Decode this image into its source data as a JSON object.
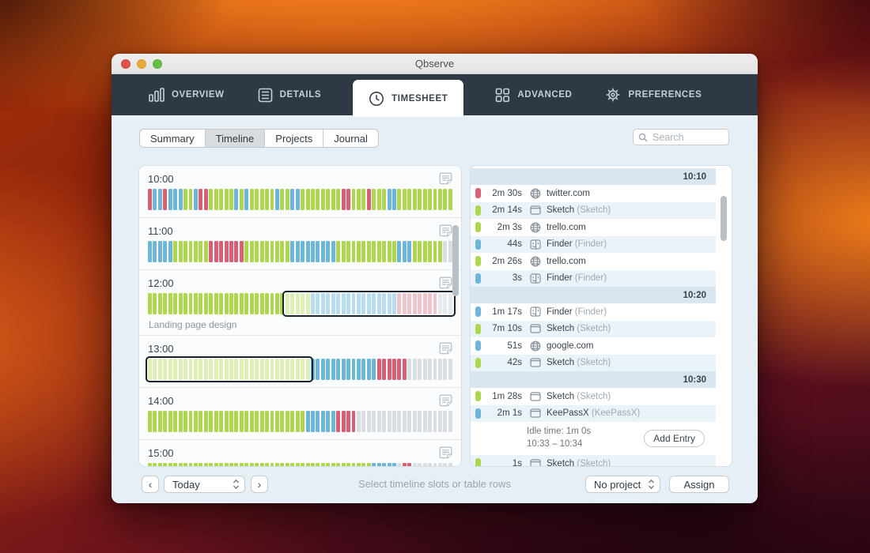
{
  "window": {
    "title": "Qbserve"
  },
  "tabs": {
    "active_index": 2,
    "items": [
      {
        "label": "OVERVIEW"
      },
      {
        "label": "DETAILS"
      },
      {
        "label": "TIMESHEET"
      },
      {
        "label": "ADVANCED"
      },
      {
        "label": "PREFERENCES"
      }
    ]
  },
  "subtabs": {
    "active_index": 1,
    "items": [
      {
        "label": "Summary"
      },
      {
        "label": "Timeline"
      },
      {
        "label": "Projects"
      },
      {
        "label": "Journal"
      }
    ]
  },
  "search": {
    "placeholder": "Search"
  },
  "timeline": {
    "colors": {
      "G": "#aed74f",
      "B": "#6db6d9",
      "R": "#d95f74",
      "I": "#d9dee3",
      "g": "#ddefb6",
      "b": "#b9ddee",
      "r": "#eec5cd",
      "i": "#e6eaed"
    },
    "hours": [
      {
        "time": "10:00",
        "pattern": "RBBRBBBGGBRRGGGGGBGBGGGGGBGGBBGGGGGGGGRRGGGRGGGBBGGGGGGGGGGG"
      },
      {
        "time": "11:00",
        "pattern": "BBBBBGGGGGGGRRRRRRRGGGGGGGGGBBBBBBBBBGGGGGGGGGGGGBBBGGGGGGII"
      },
      {
        "time": "12:00",
        "pattern": "GGGGGGGGGGGGGGGGGGGGGGGGGGGgggggbbbbbbbbbbbbbbbbbrrrrrrrriii",
        "label": "Landing page design",
        "selection": {
          "start": 27,
          "end": 60
        }
      },
      {
        "time": "13:00",
        "pattern": "ggggggggggggggggggggggggggggggggBBBBBBBBBBBBBRRRRRRIIIIIIIII",
        "selection": {
          "start": 0,
          "end": 32
        }
      },
      {
        "time": "14:00",
        "pattern": "GGGGGGGGGGGGGGGGGGGGGGGGGGGGGGGBBBBBBRRRRIIIIIIIIIIIIIIIIIII"
      },
      {
        "time": "15:00",
        "pattern": "GGGGGGGGGGGGGGGGGGGGGGGGGGGGGGGGGGGGGGGGGGGGBBBBBIRRIIIIIIII"
      }
    ]
  },
  "activity": {
    "pill_colors": {
      "red": "#d95f74",
      "green": "#aed74f",
      "blue": "#6db6d9"
    },
    "sections": [
      {
        "time": "10:10",
        "rows": [
          {
            "color": "red",
            "duration": "2m 30s",
            "icon": "globe",
            "name": "twitter.com",
            "app": ""
          },
          {
            "color": "green",
            "duration": "2m 14s",
            "icon": "window",
            "name": "Sketch",
            "app": "(Sketch)"
          },
          {
            "color": "green",
            "duration": "2m 3s",
            "icon": "globe",
            "name": "trello.com",
            "app": ""
          },
          {
            "color": "blue",
            "duration": "44s",
            "icon": "finder",
            "name": "Finder",
            "app": "(Finder)"
          },
          {
            "color": "green",
            "duration": "2m 26s",
            "icon": "globe",
            "name": "trello.com",
            "app": ""
          },
          {
            "color": "blue",
            "duration": "3s",
            "icon": "finder",
            "name": "Finder",
            "app": "(Finder)"
          }
        ]
      },
      {
        "time": "10:20",
        "rows": [
          {
            "color": "blue",
            "duration": "1m 17s",
            "icon": "finder",
            "name": "Finder",
            "app": "(Finder)"
          },
          {
            "color": "green",
            "duration": "7m 10s",
            "icon": "window",
            "name": "Sketch",
            "app": "(Sketch)"
          },
          {
            "color": "blue",
            "duration": "51s",
            "icon": "globe",
            "name": "google.com",
            "app": ""
          },
          {
            "color": "green",
            "duration": "42s",
            "icon": "window",
            "name": "Sketch",
            "app": "(Sketch)"
          }
        ]
      },
      {
        "time": "10:30",
        "rows": [
          {
            "color": "green",
            "duration": "1m 28s",
            "icon": "window",
            "name": "Sketch",
            "app": "(Sketch)"
          },
          {
            "color": "blue",
            "duration": "2m 1s",
            "icon": "window",
            "name": "KeePassX",
            "app": "(KeePassX)"
          },
          {
            "type": "idle",
            "line1": "Idle time: 1m 0s",
            "line2": "10:33 – 10:34",
            "button": "Add Entry"
          },
          {
            "color": "green",
            "duration": "1s",
            "icon": "window",
            "name": "Sketch",
            "app": "(Sketch)"
          }
        ]
      }
    ]
  },
  "footer": {
    "prev": "‹",
    "date": "Today",
    "next": "›",
    "hint": "Select timeline slots or table rows",
    "project": "No project",
    "assign": "Assign"
  }
}
